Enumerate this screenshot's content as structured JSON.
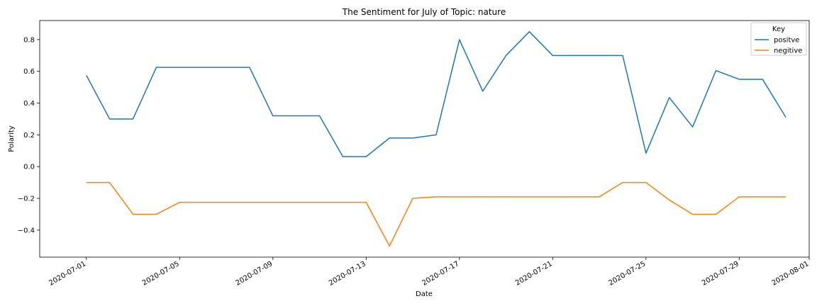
{
  "chart_data": {
    "type": "line",
    "title": "The Sentiment for July of Topic: nature",
    "xlabel": "Date",
    "ylabel": "Polarity",
    "xlim": [
      "2020-06-29",
      "2020-08-01"
    ],
    "ylim": [
      -0.57,
      0.92
    ],
    "x_ticks": [
      "2020-07-01",
      "2020-07-05",
      "2020-07-09",
      "2020-07-13",
      "2020-07-17",
      "2020-07-21",
      "2020-07-25",
      "2020-07-29",
      "2020-08-01"
    ],
    "y_ticks": [
      -0.4,
      -0.2,
      0.0,
      0.2,
      0.4,
      0.6,
      0.8
    ],
    "y_tick_labels": [
      "−0.4",
      "−0.2",
      "0.0",
      "0.2",
      "0.4",
      "0.6",
      "0.8"
    ],
    "grid": false,
    "legend": {
      "title": "Key",
      "placement": "top-right"
    },
    "x": [
      "2020-07-01",
      "2020-07-02",
      "2020-07-03",
      "2020-07-04",
      "2020-07-05",
      "2020-07-06",
      "2020-07-07",
      "2020-07-08",
      "2020-07-09",
      "2020-07-10",
      "2020-07-11",
      "2020-07-12",
      "2020-07-13",
      "2020-07-14",
      "2020-07-15",
      "2020-07-16",
      "2020-07-17",
      "2020-07-18",
      "2020-07-19",
      "2020-07-20",
      "2020-07-21",
      "2020-07-22",
      "2020-07-23",
      "2020-07-24",
      "2020-07-25",
      "2020-07-26",
      "2020-07-27",
      "2020-07-28",
      "2020-07-29",
      "2020-07-30",
      "2020-07-31"
    ],
    "series": [
      {
        "name": "positve",
        "color": "#1f77b4",
        "values": [
          0.575,
          0.3,
          0.3,
          0.625,
          0.625,
          0.625,
          0.625,
          0.625,
          0.32,
          0.32,
          0.32,
          0.063,
          0.063,
          0.18,
          0.18,
          0.2,
          0.8,
          0.475,
          0.7,
          0.85,
          0.7,
          0.7,
          0.7,
          0.7,
          0.085,
          0.435,
          0.25,
          0.605,
          0.55,
          0.55,
          0.31
        ]
      },
      {
        "name": "negitive",
        "color": "#ff7f0e",
        "values": [
          -0.1,
          -0.1,
          -0.3,
          -0.3,
          -0.225,
          -0.225,
          -0.225,
          -0.225,
          -0.225,
          -0.225,
          -0.225,
          -0.225,
          -0.225,
          -0.5,
          -0.2,
          -0.19,
          -0.19,
          -0.19,
          -0.19,
          -0.19,
          -0.19,
          -0.19,
          -0.19,
          -0.1,
          -0.1,
          -0.21,
          -0.3,
          -0.3,
          -0.19,
          -0.19,
          -0.19
        ]
      }
    ]
  }
}
